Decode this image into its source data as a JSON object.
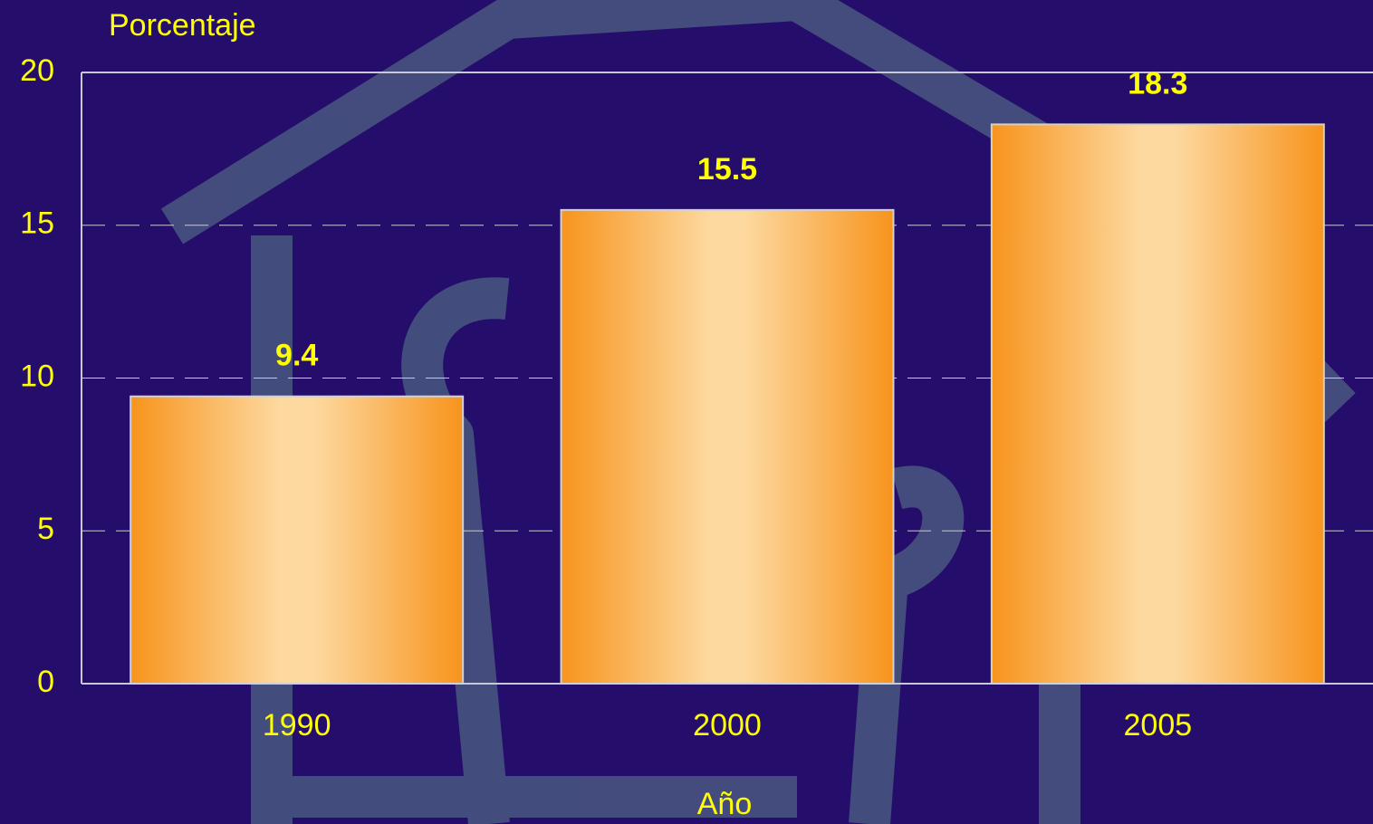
{
  "chart_data": {
    "type": "bar",
    "y_label": "Porcentaje",
    "x_label": "Año",
    "categories": [
      "1990",
      "2000",
      "2005"
    ],
    "values": [
      9.4,
      15.5,
      18.3
    ],
    "color": "#f7941d",
    "ylim": [
      0,
      20
    ],
    "yticks": [
      0,
      5,
      10,
      15,
      20
    ],
    "grid": true
  }
}
